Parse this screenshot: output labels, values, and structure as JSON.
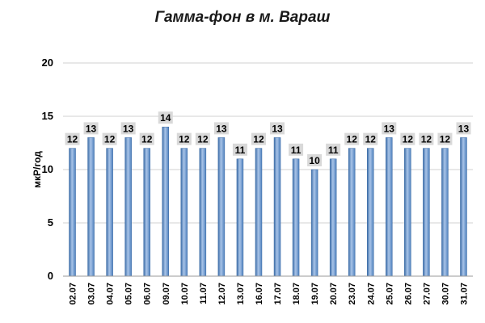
{
  "chart_data": {
    "type": "bar",
    "title": "Гамма-фон в м. Вараш",
    "ylabel": "мкР/год",
    "xlabel": "",
    "ylim": [
      0,
      20
    ],
    "yticks": [
      0,
      5,
      10,
      15,
      20
    ],
    "grid": true,
    "legend": "none",
    "colors": {
      "bar": "#4f81bd",
      "bar_highlight": "#a9c4e8",
      "label_bg": "#d9d9d9",
      "grid": "#d0d0d0"
    },
    "categories": [
      "02.07",
      "03.07",
      "04.07",
      "05.07",
      "06.07",
      "09.07",
      "10.07",
      "11.07",
      "12.07",
      "13.07",
      "16.07",
      "17.07",
      "18.07",
      "19.07",
      "20.07",
      "23.07",
      "24.07",
      "25.07",
      "26.07",
      "27.07",
      "30.07",
      "31.07"
    ],
    "values": [
      12,
      13,
      12,
      13,
      12,
      14,
      12,
      12,
      13,
      11,
      12,
      13,
      11,
      10,
      11,
      12,
      12,
      13,
      12,
      12,
      12,
      13
    ]
  }
}
